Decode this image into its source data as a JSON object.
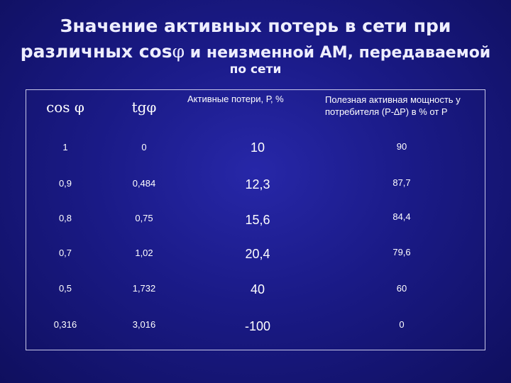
{
  "title": {
    "line1": "Значение активных потерь в сети при",
    "line2_prefix": "различных cos",
    "line2_phi": "φ",
    "line2_suffix": " и неизменной АМ, передаваемой",
    "line3": "по сети"
  },
  "table": {
    "headers": {
      "cos": "cos φ",
      "tg": "tgφ",
      "losses": "Активные потери, Р, %",
      "useful": "Полезная активная мощность у потребителя (Р-∆Р) в % от Р"
    },
    "rows": [
      {
        "cos": "1",
        "tg": "0",
        "losses": "10",
        "useful": "90"
      },
      {
        "cos": "0,9",
        "tg": "0,484",
        "losses": "12,3",
        "useful": "87,7"
      },
      {
        "cos": "0,8",
        "tg": "0,75",
        "losses": "15,6",
        "useful": "84,4"
      },
      {
        "cos": "0,7",
        "tg": "1,02",
        "losses": "20,4",
        "useful": "79,6"
      },
      {
        "cos": "0,5",
        "tg": "1,732",
        "losses": "40",
        "useful": "60"
      },
      {
        "cos": "0,316",
        "tg": "3,016",
        "losses": "-100",
        "useful": "0"
      }
    ]
  }
}
